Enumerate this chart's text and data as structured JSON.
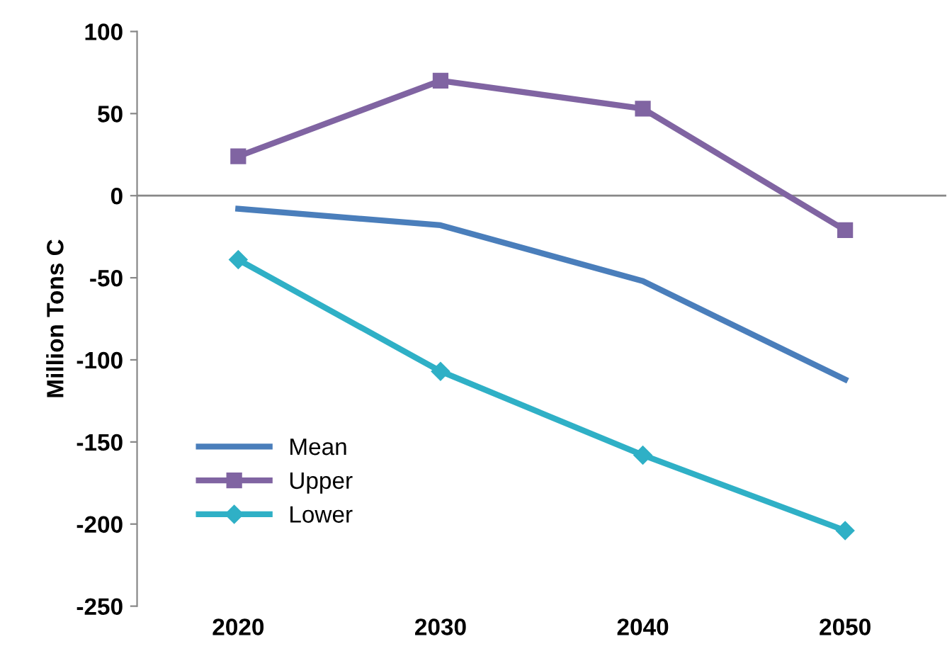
{
  "chart_data": {
    "type": "line",
    "ylabel": "Million Tons C",
    "categories": [
      "2020",
      "2030",
      "2040",
      "2050"
    ],
    "series": [
      {
        "name": "Mean",
        "color": "#4a7ebb",
        "values": [
          -8,
          -18,
          -52,
          -112
        ],
        "marker": "none"
      },
      {
        "name": "Upper",
        "color": "#8064a2",
        "values": [
          24,
          70,
          53,
          -21
        ],
        "marker": "square"
      },
      {
        "name": "Lower",
        "color": "#2fb0c6",
        "values": [
          -39,
          -107,
          -158,
          -204
        ],
        "marker": "diamond"
      }
    ],
    "ylim": [
      -250,
      100
    ],
    "yticks": [
      -250,
      -200,
      -150,
      -100,
      -50,
      0,
      50,
      100
    ],
    "ref_lines": [
      {
        "axis": "y",
        "value": 0,
        "color": "#888888"
      }
    ],
    "legend": "bottom left",
    "line_style": "solid"
  }
}
